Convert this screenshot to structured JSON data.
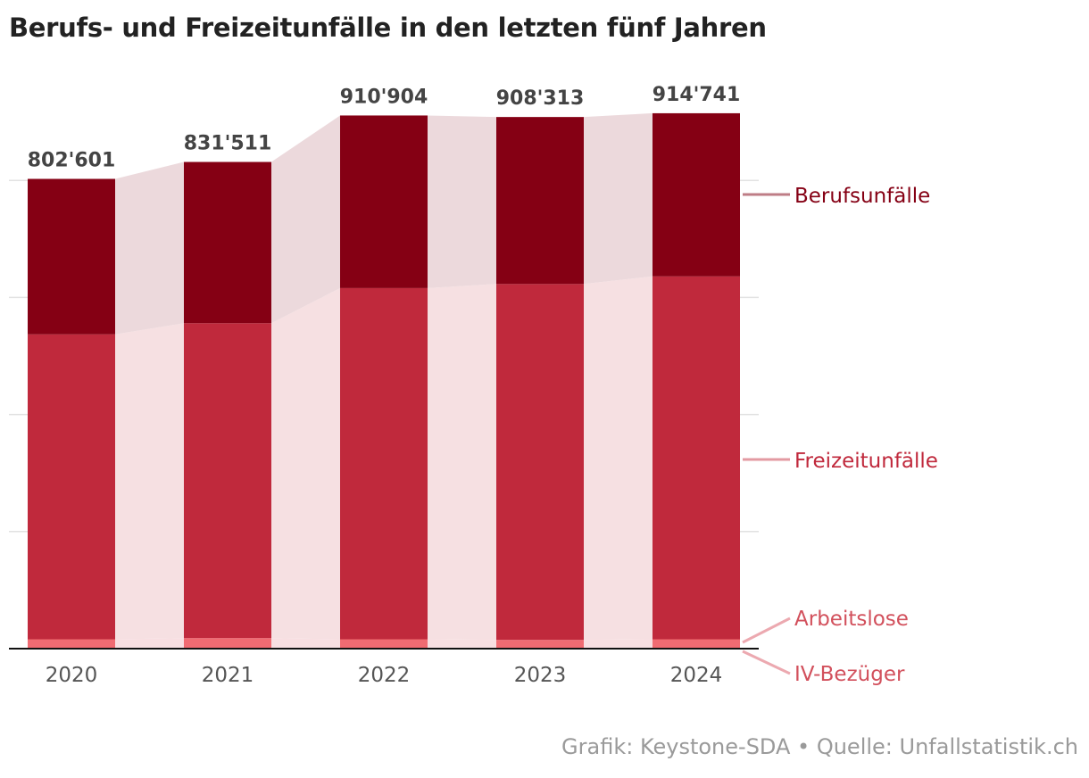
{
  "title": "Berufs- und Freizeitunfälle in den letzten fünf Jahren",
  "footer": "Grafik: Keystone-SDA • Quelle: Unfallstatistik.ch",
  "colors": {
    "beruf": "#850014",
    "freizeit": "#c0293c",
    "arbeitslose": "#f06b72",
    "iv": "#f6a5a9",
    "band_beruf": "#ecd9dc",
    "band_freizeit": "#f6e0e2",
    "band_bottom": "#f8dfe2",
    "legend_beruf_line": "#be7d86",
    "legend_freizeit_line": "#e39aa2",
    "legend_bottom_line": "#eca9b0",
    "legend_beruf_text": "#850014",
    "legend_freizeit_text": "#c0293c",
    "legend_bottom_text": "#d2505c"
  },
  "chart_data": {
    "type": "bar",
    "stacked": true,
    "title": "Berufs- und Freizeitunfälle in den letzten fünf Jahren",
    "xlabel": "",
    "ylabel": "",
    "ylim": [
      0,
      1000000
    ],
    "grid": true,
    "categories": [
      "2020",
      "2021",
      "2022",
      "2023",
      "2024"
    ],
    "totals": [
      802601,
      831511,
      910904,
      908313,
      914741
    ],
    "total_labels": [
      "802'601",
      "831'511",
      "910'904",
      "908'313",
      "914'741"
    ],
    "series": [
      {
        "name": "IV-Bezüger",
        "key": "iv",
        "values": [
          900,
          1000,
          1000,
          1000,
          1000
        ]
      },
      {
        "name": "Arbeitslose",
        "key": "arbeitslose",
        "values": [
          15100,
          17000,
          15000,
          14000,
          15000
        ]
      },
      {
        "name": "Freizeitunfälle",
        "key": "freizeit",
        "values": [
          521000,
          538000,
          600000,
          608000,
          620000
        ]
      },
      {
        "name": "Berufsunfälle",
        "key": "beruf",
        "values": [
          265601,
          275511,
          294904,
          285313,
          278741
        ]
      }
    ],
    "legend": [
      "Berufsunfälle",
      "Freizeitunfälle",
      "Arbeitslose",
      "IV-Bezüger"
    ],
    "legend_position": "right"
  }
}
